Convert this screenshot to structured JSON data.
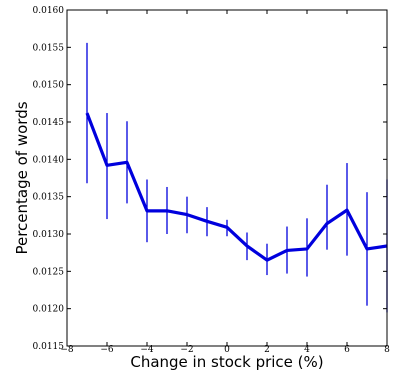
{
  "chart_data": {
    "type": "line",
    "title": "",
    "xlabel": "Change in stock price (%)",
    "ylabel": "Percentage of words",
    "xlim": [
      -8,
      8
    ],
    "ylim": [
      0.0115,
      0.016
    ],
    "x_ticks": [
      -8,
      -6,
      -4,
      -2,
      0,
      2,
      4,
      6,
      8
    ],
    "x_tick_labels": [
      "−8",
      "−6",
      "−4",
      "−2",
      "0",
      "2",
      "4",
      "6",
      "8"
    ],
    "y_ticks": [
      0.0115,
      0.012,
      0.0125,
      0.013,
      0.0135,
      0.014,
      0.0145,
      0.015,
      0.0155,
      0.016
    ],
    "y_tick_labels": [
      "0.0115",
      "0.0120",
      "0.0125",
      "0.0130",
      "0.0135",
      "0.0140",
      "0.0145",
      "0.0150",
      "0.0155",
      "0.0160"
    ],
    "grid": false,
    "legend": "none",
    "color": "#0000dd",
    "series": [
      {
        "x": [
          -7,
          -6,
          -5,
          -4,
          -3,
          -2,
          -1,
          0,
          1,
          2,
          3,
          4,
          5,
          6,
          7,
          8
        ],
        "y": [
          0.01462,
          0.01392,
          0.01396,
          0.01331,
          0.01331,
          0.01326,
          0.01317,
          0.01309,
          0.01284,
          0.01265,
          0.01278,
          0.0128,
          0.01314,
          0.01332,
          0.0128,
          0.01284
        ],
        "error_low": [
          0.01368,
          0.0132,
          0.01341,
          0.01289,
          0.013,
          0.01301,
          0.01297,
          0.01297,
          0.01265,
          0.01245,
          0.01247,
          0.01243,
          0.01279,
          0.01271,
          0.01204,
          0.01195
        ],
        "error_high": [
          0.01556,
          0.01462,
          0.01451,
          0.01373,
          0.01363,
          0.0135,
          0.01336,
          0.01319,
          0.01302,
          0.01287,
          0.0131,
          0.01321,
          0.01366,
          0.01395,
          0.01356,
          0.01373
        ]
      }
    ]
  }
}
